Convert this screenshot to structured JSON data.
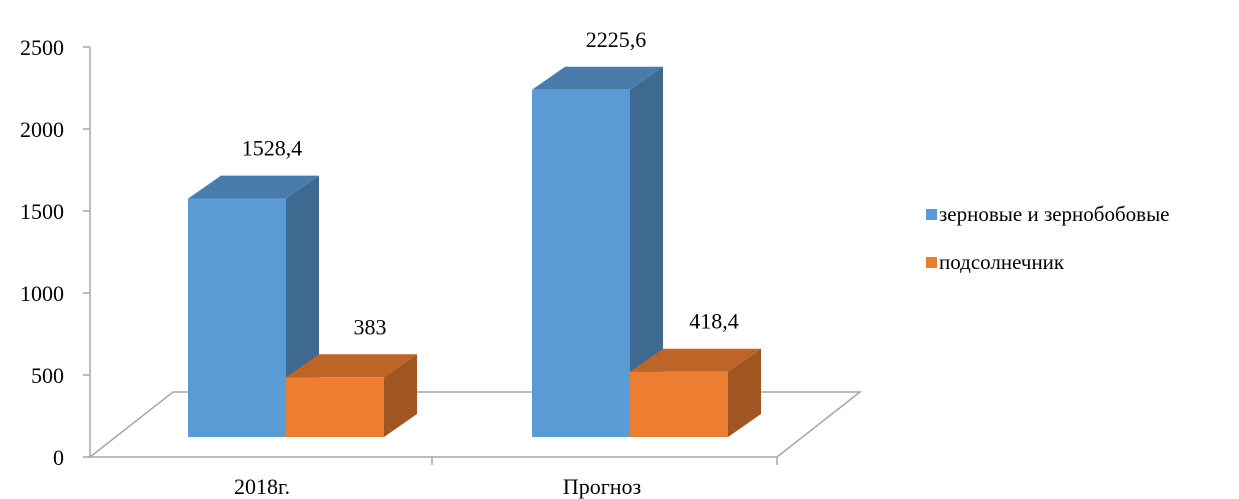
{
  "chart_data": {
    "type": "bar",
    "title": "",
    "xlabel": "",
    "ylabel": "",
    "categories": [
      "2018г.",
      "Прогноз"
    ],
    "series": [
      {
        "name": "зерновые и зернобобовые",
        "values": [
          1528.4,
          2225.6
        ],
        "labels": [
          "1528,4",
          "2225,6"
        ],
        "color": "#5B9BD5"
      },
      {
        "name": "подсолнечник",
        "values": [
          383,
          418.4
        ],
        "labels": [
          "383",
          "418,4"
        ],
        "color": "#ED7D31"
      }
    ],
    "ylim": [
      0,
      2500
    ],
    "yticks": [
      "0",
      "500",
      "1000",
      "1500",
      "2000",
      "2500"
    ],
    "grid": false,
    "legend": "right",
    "style": "3d-column"
  }
}
